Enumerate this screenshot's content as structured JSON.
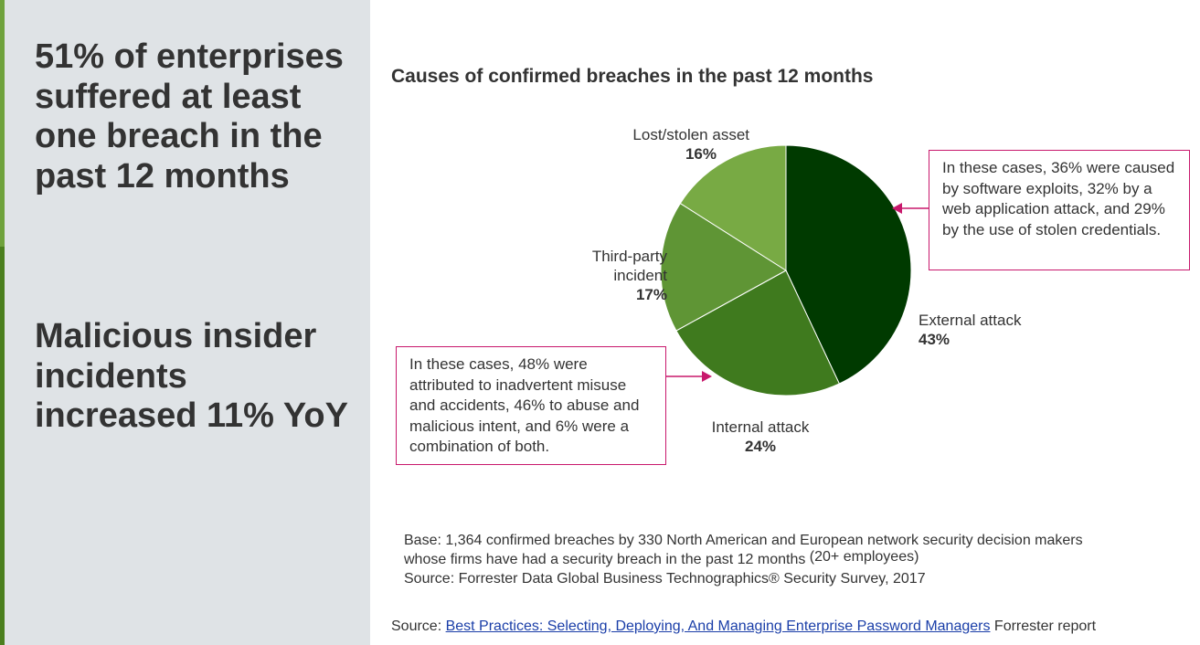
{
  "left_panel": {
    "headline_1": "51% of enterprises suffered at least one breach in the past 12 months",
    "headline_2": "Malicious insider incidents increased 11% YoY",
    "accent_colors": [
      "#6fa23c",
      "#4b7f1e"
    ]
  },
  "chart_data": {
    "type": "pie",
    "title": "Causes of confirmed breaches in the past 12 months",
    "categories": [
      "External attack",
      "Internal attack",
      "Third-party incident",
      "Lost/stolen asset"
    ],
    "values": [
      43,
      24,
      17,
      16
    ],
    "value_labels": [
      "43%",
      "24%",
      "17%",
      "16%"
    ],
    "colors": [
      "#003a00",
      "#3f7a1e",
      "#5f9535",
      "#78aa44"
    ],
    "start": "12 o'clock, clockwise"
  },
  "annotations": {
    "external": "In these cases, 36% were caused by software exploits, 32% by a web application attack, and 29% by the use of stolen credentials.",
    "internal": "In these cases, 48% were attributed to inadvertent misuse and accidents, 46% to abuse and malicious intent, and 6% were a combination of both.",
    "color": "#c8186c"
  },
  "footnote": {
    "base_1": "Base: 1,364 confirmed breaches by 330 North American and European network security decision makers",
    "base_2": "whose firms have had a security breach in the past 12 months",
    "base_3": "(20+ employees)",
    "source": "Source: Forrester Data Global Business Technographics® Security Survey, 2017"
  },
  "source": {
    "prefix": "Source: ",
    "link": "Best Practices: Selecting, Deploying, And Managing Enterprise Password Managers",
    "suffix": " Forrester report"
  }
}
